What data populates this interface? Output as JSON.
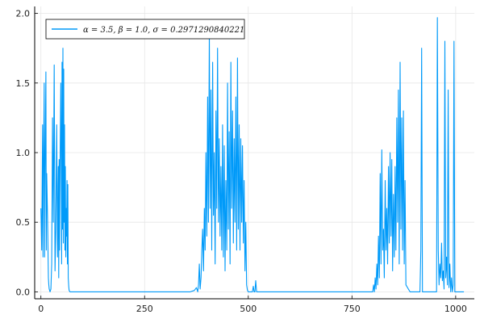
{
  "chart_data": {
    "type": "line",
    "title": "",
    "xlabel": "",
    "ylabel": "",
    "xlim": [
      -15,
      1045
    ],
    "ylim": [
      -0.05,
      2.05
    ],
    "xticks": [
      0,
      250,
      500,
      750,
      1000
    ],
    "xtick_labels": [
      "0",
      "250",
      "500",
      "750",
      "1000"
    ],
    "yticks": [
      0.0,
      0.5,
      1.0,
      1.5,
      2.0
    ],
    "ytick_labels": [
      "0.0",
      "0.5",
      "1.0",
      "1.5",
      "2.0"
    ],
    "grid": true,
    "legend_position": "top-left",
    "series": [
      {
        "name": "α = 3.5, β = 1.0, σ = 0.2971290840221",
        "color": "#009af9",
        "x": [
          0,
          2,
          4,
          5,
          6,
          8,
          9,
          10,
          12,
          13,
          14,
          16,
          18,
          19,
          20,
          22,
          24,
          26,
          28,
          30,
          32,
          34,
          36,
          38,
          40,
          42,
          43,
          44,
          45,
          46,
          48,
          50,
          51,
          52,
          53,
          54,
          55,
          56,
          57,
          58,
          59,
          60,
          61,
          62,
          63,
          64,
          65,
          66,
          67,
          68,
          70,
          75,
          80,
          100,
          200,
          300,
          360,
          370,
          375,
          378,
          380,
          382,
          384,
          386,
          388,
          390,
          392,
          394,
          396,
          398,
          400,
          402,
          404,
          406,
          408,
          410,
          412,
          414,
          416,
          418,
          420,
          422,
          424,
          426,
          428,
          430,
          432,
          434,
          436,
          438,
          440,
          442,
          444,
          446,
          448,
          450,
          452,
          454,
          456,
          458,
          460,
          462,
          464,
          466,
          468,
          470,
          472,
          474,
          476,
          478,
          480,
          482,
          484,
          486,
          488,
          490,
          492,
          494,
          496,
          498,
          500,
          502,
          504,
          506,
          508,
          510,
          512,
          514,
          516,
          518,
          520,
          530,
          600,
          700,
          790,
          800,
          802,
          804,
          806,
          808,
          810,
          812,
          814,
          816,
          818,
          820,
          822,
          824,
          826,
          828,
          830,
          832,
          834,
          836,
          838,
          840,
          842,
          844,
          846,
          848,
          850,
          852,
          854,
          856,
          858,
          860,
          862,
          864,
          866,
          868,
          870,
          872,
          874,
          876,
          878,
          880,
          890,
          910,
          912,
          914,
          916,
          918,
          920,
          940,
          948,
          950,
          952,
          954,
          956,
          958,
          960,
          962,
          964,
          966,
          968,
          970,
          972,
          974,
          976,
          978,
          980,
          982,
          984,
          986,
          988,
          990,
          992,
          994,
          996,
          998,
          1000,
          1002,
          1004,
          1006,
          1008,
          1010,
          1015,
          1020
        ],
        "y": [
          0.6,
          0.3,
          1.2,
          0.25,
          0.8,
          1.5,
          0.25,
          0.85,
          1.58,
          0.3,
          0.85,
          0.55,
          0.1,
          0.05,
          0.02,
          0.0,
          0.02,
          0.2,
          1.25,
          0.5,
          1.63,
          0.15,
          0.45,
          1.2,
          0.25,
          0.9,
          0.1,
          0.95,
          0.3,
          0.88,
          1.5,
          0.2,
          1.65,
          0.45,
          1.75,
          0.35,
          1.6,
          0.5,
          1.2,
          0.3,
          0.9,
          0.25,
          0.6,
          0.4,
          0.8,
          0.2,
          0.77,
          0.1,
          0.04,
          0.01,
          0.0,
          0.0,
          0.0,
          0.0,
          0.0,
          0.0,
          0.0,
          0.01,
          0.03,
          0.0,
          0.05,
          0.2,
          0.02,
          0.1,
          0.3,
          0.45,
          0.15,
          0.6,
          0.3,
          1.0,
          0.4,
          1.4,
          0.5,
          1.85,
          0.6,
          1.45,
          0.3,
          1.65,
          0.55,
          1.0,
          0.2,
          1.3,
          0.6,
          1.75,
          0.5,
          1.1,
          0.4,
          0.9,
          0.3,
          1.2,
          0.25,
          1.05,
          0.15,
          0.8,
          0.3,
          1.5,
          0.45,
          1.15,
          0.2,
          1.65,
          0.6,
          1.3,
          0.35,
          1.1,
          0.5,
          1.4,
          0.3,
          1.68,
          0.45,
          1.2,
          0.3,
          1.1,
          0.5,
          1.05,
          0.35,
          0.8,
          0.15,
          0.5,
          0.05,
          0.01,
          0.0,
          0.0,
          0.0,
          0.0,
          0.0,
          0.0,
          0.04,
          0.0,
          0.0,
          0.08,
          0.0,
          0.0,
          0.0,
          0.0,
          0.0,
          0.0,
          0.05,
          0.0,
          0.1,
          0.02,
          0.2,
          0.05,
          0.4,
          0.1,
          0.85,
          0.2,
          1.02,
          0.3,
          0.45,
          0.1,
          0.8,
          0.3,
          0.6,
          0.2,
          0.9,
          0.35,
          1.0,
          0.4,
          0.95,
          0.15,
          0.7,
          0.25,
          0.9,
          0.3,
          1.25,
          0.5,
          1.45,
          0.2,
          1.65,
          0.45,
          1.25,
          0.3,
          1.3,
          0.2,
          0.8,
          0.05,
          0.0,
          0.0,
          0.0,
          0.0,
          0.3,
          1.75,
          0.0,
          0.0,
          0.0,
          0.0,
          0.0,
          0.0,
          1.97,
          0.3,
          0.05,
          0.2,
          0.1,
          0.35,
          0.08,
          0.15,
          0.02,
          1.8,
          0.1,
          0.25,
          0.05,
          1.45,
          0.03,
          0.2,
          0.0,
          0.1,
          0.0,
          0.05,
          1.8,
          0.0,
          0.0,
          0.0,
          0.0,
          0.0,
          0.0,
          0.0,
          0.0,
          0.0
        ]
      }
    ]
  }
}
